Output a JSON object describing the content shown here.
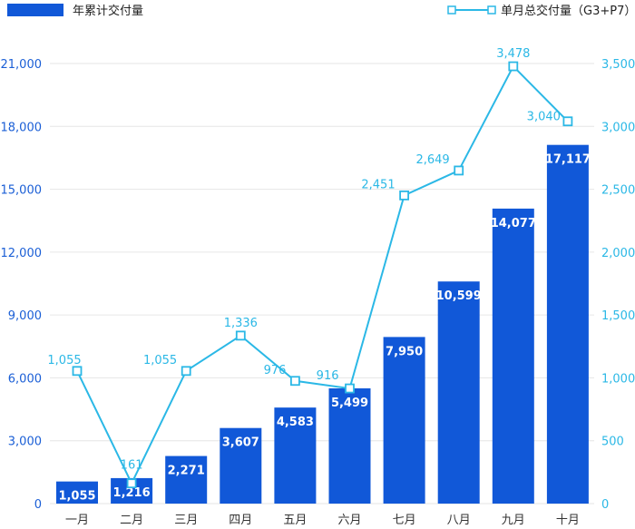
{
  "chart_data": {
    "type": "bar+line",
    "categories": [
      "一月",
      "二月",
      "三月",
      "四月",
      "五月",
      "六月",
      "七月",
      "八月",
      "九月",
      "十月"
    ],
    "series": [
      {
        "name": "年累计交付量",
        "type": "bar",
        "axis": "left",
        "values": [
          1055,
          1216,
          2271,
          3607,
          4583,
          5499,
          7950,
          10599,
          14077,
          17117
        ],
        "labels": [
          "1,055",
          "1,216",
          "2,271",
          "3,607",
          "4,583",
          "5,499",
          "7,950",
          "10,599",
          "14,077",
          "17,117"
        ]
      },
      {
        "name": "单月总交付量（G3+P7）",
        "type": "line",
        "axis": "right",
        "values": [
          1055,
          161,
          1055,
          1336,
          976,
          916,
          2451,
          2649,
          3478,
          3040
        ],
        "labels": [
          "1,055",
          "161",
          "1,055",
          "1,336",
          "976",
          "916",
          "2,451",
          "2,649",
          "3,478",
          "3,040"
        ]
      }
    ],
    "y_left": {
      "ylim": [
        0,
        21000
      ],
      "ticks": [
        0,
        3000,
        6000,
        9000,
        12000,
        15000,
        18000,
        21000
      ],
      "tick_labels": [
        "0",
        "3,000",
        "6,000",
        "9,000",
        "12,000",
        "15,000",
        "18,000",
        "21,000"
      ]
    },
    "y_right": {
      "ylim": [
        0,
        3500
      ],
      "ticks": [
        0,
        500,
        1000,
        1500,
        2000,
        2500,
        3000,
        3500
      ],
      "tick_labels": [
        "0",
        "500",
        "1,000",
        "1,500",
        "2,000",
        "2,500",
        "3,000",
        "3,500"
      ]
    },
    "legend": {
      "position": "top"
    },
    "grid": true,
    "colors": {
      "bar": "#1158d8",
      "line": "#2bb8e6",
      "marker_fill": "#ffffff",
      "grid": "#e6e6e6"
    }
  }
}
